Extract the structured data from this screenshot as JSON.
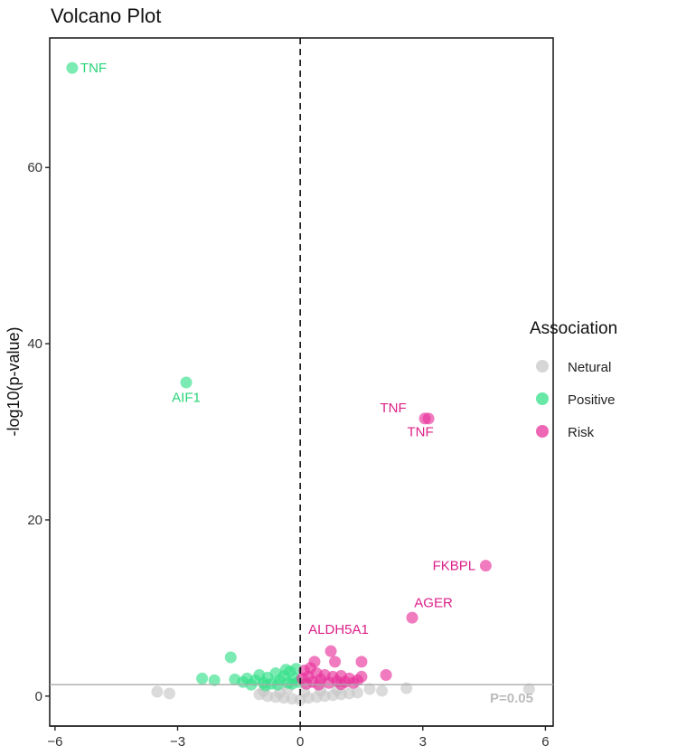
{
  "chart_data": {
    "type": "scatter",
    "title": "Volcano Plot",
    "xlabel": "",
    "ylabel": "-log10(p-value)",
    "xlim": [
      -6.13,
      6.19
    ],
    "ylim": [
      -3.4,
      74.7
    ],
    "xticks": [
      -6,
      -3,
      0,
      3,
      6
    ],
    "xtick_labels": [
      "-6",
      "-3",
      "0",
      "3",
      "6"
    ],
    "yticks": [
      0,
      20,
      40,
      60
    ],
    "ytick_labels": [
      "0",
      "20",
      "40",
      "60"
    ],
    "grid": false,
    "vline_x": 0,
    "hline_y": 1.3,
    "hline_label": "P=0.05",
    "legend": {
      "title": "Association",
      "placement": "right",
      "entries": [
        {
          "label": "Netural",
          "color": "#c8c8c8"
        },
        {
          "label": "Positive",
          "color": "#35e08a"
        },
        {
          "label": "Risk",
          "color": "#e8349c"
        }
      ]
    },
    "colors": {
      "Netural": "#c8c8c8",
      "Positive": "#35e08a",
      "Risk": "#e8349c",
      "Positive_label": "#27d477",
      "Risk_label": "#dd1f88"
    },
    "labels": [
      {
        "text": "TNF",
        "x": -5.58,
        "y": 71.3,
        "group": "Positive",
        "anchor": "start",
        "dx": 0.2,
        "dy": 0
      },
      {
        "text": "AIF1",
        "x": -2.79,
        "y": 35.6,
        "group": "Positive",
        "anchor": "middle",
        "dx": 0,
        "dy": -1.7
      },
      {
        "text": "TNF",
        "x": 3.05,
        "y": 31.5,
        "group": "Risk",
        "anchor": "end",
        "dx": -0.45,
        "dy": 1.2
      },
      {
        "text": "TNF",
        "x": 3.14,
        "y": 31.5,
        "group": "Risk",
        "anchor": "middle",
        "dx": -0.2,
        "dy": -1.5
      },
      {
        "text": "FKBPL",
        "x": 4.54,
        "y": 14.8,
        "group": "Risk",
        "anchor": "end",
        "dx": -0.25,
        "dy": 0
      },
      {
        "text": "AGER",
        "x": 2.74,
        "y": 8.9,
        "group": "Risk",
        "anchor": "start",
        "dx": 0.05,
        "dy": 1.7
      },
      {
        "text": "ALDH5A1",
        "x": 0.75,
        "y": 5.1,
        "group": "Risk",
        "anchor": "start",
        "dx": -0.55,
        "dy": 2.5
      }
    ],
    "points": [
      [
        -5.58,
        71.3,
        "Positive"
      ],
      [
        -2.79,
        35.6,
        "Positive"
      ],
      [
        3.05,
        31.5,
        "Risk"
      ],
      [
        3.14,
        31.5,
        "Risk"
      ],
      [
        4.54,
        14.8,
        "Risk"
      ],
      [
        2.74,
        8.9,
        "Risk"
      ],
      [
        0.75,
        5.1,
        "Risk"
      ],
      [
        -3.5,
        0.5,
        "Netural"
      ],
      [
        -3.2,
        0.3,
        "Netural"
      ],
      [
        2.0,
        0.6,
        "Netural"
      ],
      [
        2.6,
        0.9,
        "Netural"
      ],
      [
        5.6,
        0.8,
        "Netural"
      ],
      [
        1.4,
        0.4,
        "Netural"
      ],
      [
        1.7,
        0.8,
        "Netural"
      ],
      [
        -1.0,
        0.2,
        "Netural"
      ],
      [
        -0.8,
        0.0,
        "Netural"
      ],
      [
        -0.6,
        -0.1,
        "Netural"
      ],
      [
        -0.4,
        -0.2,
        "Netural"
      ],
      [
        -0.2,
        -0.3,
        "Netural"
      ],
      [
        0.0,
        -0.4,
        "Netural"
      ],
      [
        0.2,
        -0.2,
        "Netural"
      ],
      [
        0.4,
        -0.1,
        "Netural"
      ],
      [
        0.6,
        0.0,
        "Netural"
      ],
      [
        0.8,
        0.1,
        "Netural"
      ],
      [
        1.0,
        0.2,
        "Netural"
      ],
      [
        1.2,
        0.3,
        "Netural"
      ],
      [
        -0.5,
        0.4,
        "Netural"
      ],
      [
        0.1,
        0.5,
        "Netural"
      ],
      [
        0.5,
        0.6,
        "Netural"
      ],
      [
        -0.3,
        0.9,
        "Netural"
      ],
      [
        0.9,
        0.7,
        "Netural"
      ],
      [
        -0.9,
        0.6,
        "Netural"
      ],
      [
        -1.7,
        4.4,
        "Positive"
      ],
      [
        -2.4,
        2.0,
        "Positive"
      ],
      [
        -2.1,
        1.8,
        "Positive"
      ],
      [
        -1.6,
        1.9,
        "Positive"
      ],
      [
        -1.4,
        1.6,
        "Positive"
      ],
      [
        -1.3,
        2.0,
        "Positive"
      ],
      [
        -1.2,
        1.3,
        "Positive"
      ],
      [
        -1.1,
        1.8,
        "Positive"
      ],
      [
        -1.0,
        2.4,
        "Positive"
      ],
      [
        -0.9,
        1.5,
        "Positive"
      ],
      [
        -0.8,
        2.1,
        "Positive"
      ],
      [
        -0.7,
        1.4,
        "Positive"
      ],
      [
        -0.6,
        2.6,
        "Positive"
      ],
      [
        -0.5,
        1.8,
        "Positive"
      ],
      [
        -0.4,
        2.3,
        "Positive"
      ],
      [
        -0.3,
        1.5,
        "Positive"
      ],
      [
        -0.25,
        2.8,
        "Positive"
      ],
      [
        -0.15,
        2.0,
        "Positive"
      ],
      [
        -0.1,
        3.1,
        "Positive"
      ],
      [
        -0.05,
        1.6,
        "Positive"
      ],
      [
        -0.85,
        1.2,
        "Positive"
      ],
      [
        -0.55,
        1.3,
        "Positive"
      ],
      [
        -0.2,
        1.4,
        "Positive"
      ],
      [
        -0.35,
        3.0,
        "Positive"
      ],
      [
        2.1,
        2.4,
        "Risk"
      ],
      [
        1.5,
        3.9,
        "Risk"
      ],
      [
        0.85,
        3.9,
        "Risk"
      ],
      [
        0.35,
        3.9,
        "Risk"
      ],
      [
        1.5,
        2.2,
        "Risk"
      ],
      [
        0.1,
        2.9,
        "Risk"
      ],
      [
        0.2,
        2.2,
        "Risk"
      ],
      [
        0.3,
        1.6,
        "Risk"
      ],
      [
        0.4,
        2.6,
        "Risk"
      ],
      [
        0.5,
        1.9,
        "Risk"
      ],
      [
        0.6,
        2.4,
        "Risk"
      ],
      [
        0.7,
        1.5,
        "Risk"
      ],
      [
        0.8,
        2.2,
        "Risk"
      ],
      [
        0.9,
        1.7,
        "Risk"
      ],
      [
        1.0,
        2.3,
        "Risk"
      ],
      [
        1.1,
        1.6,
        "Risk"
      ],
      [
        1.2,
        2.0,
        "Risk"
      ],
      [
        1.3,
        1.5,
        "Risk"
      ],
      [
        1.4,
        1.8,
        "Risk"
      ],
      [
        0.15,
        1.4,
        "Risk"
      ],
      [
        0.45,
        1.3,
        "Risk"
      ],
      [
        0.05,
        2.0,
        "Risk"
      ],
      [
        0.25,
        3.2,
        "Risk"
      ],
      [
        1.0,
        1.35,
        "Risk"
      ]
    ]
  }
}
